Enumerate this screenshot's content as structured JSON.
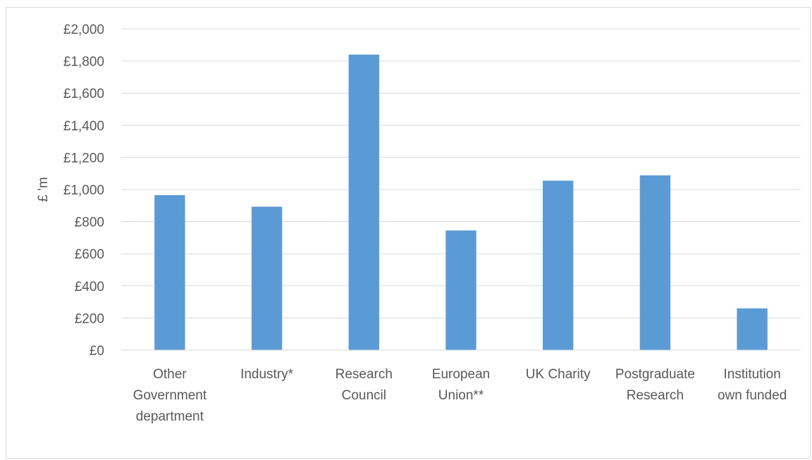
{
  "chart_data": {
    "type": "bar",
    "title": "",
    "xlabel": "",
    "ylabel": "£ 'm",
    "ylim": [
      0,
      2000
    ],
    "ytick_step": 200,
    "ytick_prefix": "£",
    "grid": true,
    "legend": "none",
    "bar_color": "#5b9bd5",
    "categories": [
      [
        "Other",
        "Government",
        "department"
      ],
      [
        "Industry*"
      ],
      [
        "Research",
        "Council"
      ],
      [
        "European",
        "Union**"
      ],
      [
        "UK Charity"
      ],
      [
        "Postgraduate",
        "Research"
      ],
      [
        "Institution",
        "own funded"
      ]
    ],
    "values": [
      965,
      893,
      1840,
      745,
      1055,
      1088,
      260
    ]
  }
}
